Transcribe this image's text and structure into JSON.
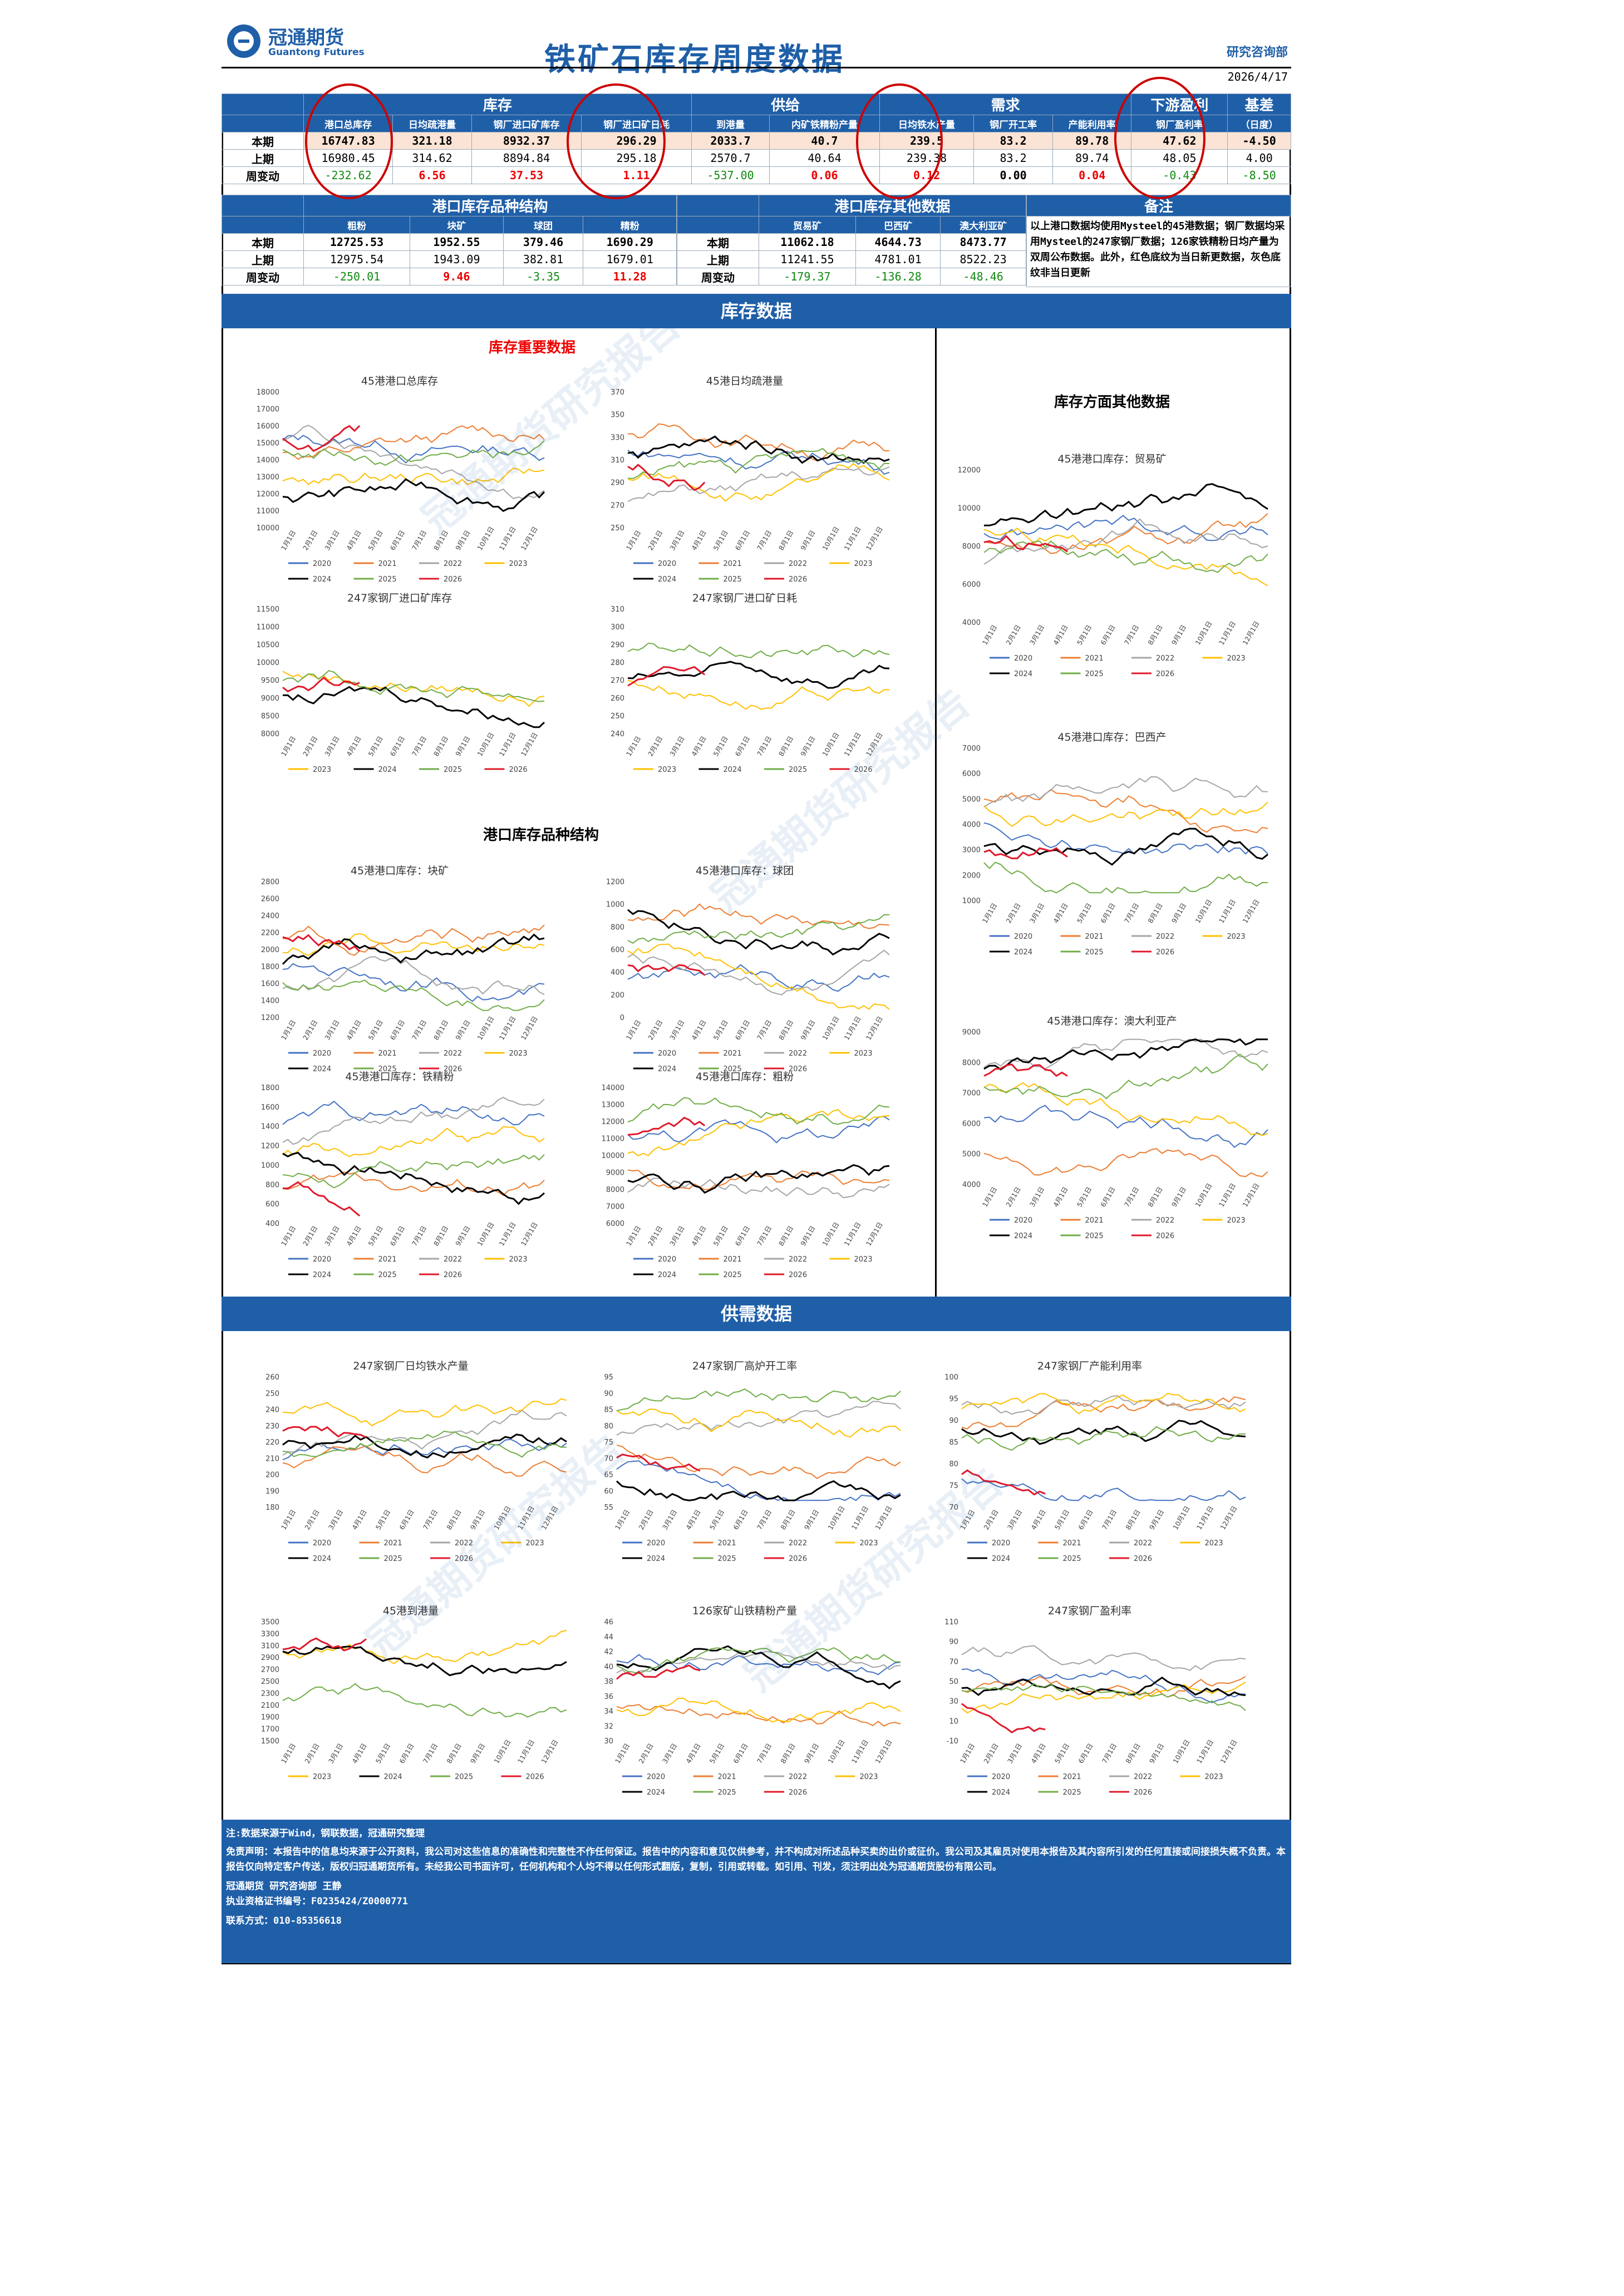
{
  "header": {
    "logo_cn": "冠通期货",
    "logo_en": "Guantong Futures",
    "title": "铁矿石库存周度数据",
    "dept": "研究咨询部",
    "date": "2026/4/17"
  },
  "table1": {
    "groups": [
      "库存",
      "供给",
      "需求",
      "下游盈利",
      "基差"
    ],
    "basis_sub": "（日度）",
    "cols": [
      "港口总库存",
      "日均疏港量",
      "钢厂进口矿库存",
      "钢厂进口矿日耗",
      "到港量",
      "内矿铁精粉产量",
      "日均铁水产量",
      "钢厂开工率",
      "产能利用率",
      "钢厂盈利率"
    ],
    "rows": [
      {
        "label": "本期",
        "vals": [
          "16747.83",
          "321.18",
          "8932.37",
          "296.29",
          "2033.7",
          "40.7",
          "239.5",
          "83.2",
          "89.78",
          "47.62",
          "-4.50"
        ]
      },
      {
        "label": "上期",
        "vals": [
          "16980.45",
          "314.62",
          "8894.84",
          "295.18",
          "2570.7",
          "40.64",
          "239.38",
          "83.2",
          "89.74",
          "48.05",
          "4.00"
        ]
      },
      {
        "label": "周变动",
        "vals": [
          "-232.62",
          "6.56",
          "37.53",
          "1.11",
          "-537.00",
          "0.06",
          "0.12",
          "0.00",
          "0.04",
          "-0.43",
          "-8.50"
        ]
      }
    ]
  },
  "table2": {
    "title": "港口库存品种结构",
    "cols": [
      "粗粉",
      "块矿",
      "球团",
      "精粉"
    ],
    "rows": [
      {
        "label": "本期",
        "vals": [
          "12725.53",
          "1952.55",
          "379.46",
          "1690.29"
        ]
      },
      {
        "label": "上期",
        "vals": [
          "12975.54",
          "1943.09",
          "382.81",
          "1679.01"
        ]
      },
      {
        "label": "周变动",
        "vals": [
          "-250.01",
          "9.46",
          "-3.35",
          "11.28"
        ]
      }
    ]
  },
  "table3": {
    "title": "港口库存其他数据",
    "cols": [
      "贸易矿",
      "巴西矿",
      "澳大利亚矿"
    ],
    "rows": [
      {
        "label": "本期",
        "vals": [
          "11062.18",
          "4644.73",
          "8473.77"
        ]
      },
      {
        "label": "上期",
        "vals": [
          "11241.55",
          "4781.01",
          "8522.23"
        ]
      },
      {
        "label": "周变动",
        "vals": [
          "-179.37",
          "-136.28",
          "-48.46"
        ]
      }
    ]
  },
  "remarks": {
    "title": "备注",
    "text": "以上港口数据均使用Mysteel的45港数据；钢厂数据均采用Mysteel的247家钢厂数据；126家铁精粉日均产量为双周公布数据。此外，红色底纹为当日新更数据，灰色底纹非当日更新"
  },
  "sections": {
    "inventory": "库存数据",
    "supply": "供需数据",
    "key_inventory": "库存重要数据",
    "port_structure": "港口库存品种结构",
    "other_inventory": "库存方面其他数据"
  },
  "months": [
    "1月1日",
    "2月1日",
    "3月1日",
    "4月1日",
    "5月1日",
    "6月1日",
    "7月1日",
    "8月1日",
    "9月1日",
    "10月1日",
    "11月1日",
    "12月1日"
  ],
  "colors": {
    "2020": "#4472c4",
    "2021": "#ed7d31",
    "2022": "#a5a5a5",
    "2023": "#ffc000",
    "2024": "#000000",
    "2025": "#70ad47",
    "2026": "#e0192b"
  },
  "charts": [
    {
      "id": "c1",
      "title": "45港港口总库存",
      "yticks": [
        "18000",
        "17000",
        "16000",
        "15000",
        "14000",
        "13000",
        "12000",
        "11000",
        "10000"
      ],
      "legend": [
        "2020",
        "2021",
        "2022",
        "2023",
        "2024",
        "2025",
        "2026"
      ]
    },
    {
      "id": "c2",
      "title": "45港日均疏港量",
      "yticks": [
        "370",
        "350",
        "330",
        "310",
        "290",
        "270",
        "250"
      ],
      "legend": [
        "2020",
        "2021",
        "2022",
        "2023",
        "2024",
        "2025",
        "2026"
      ]
    },
    {
      "id": "c3",
      "title": "247家钢厂进口矿库存",
      "yticks": [
        "11500",
        "11000",
        "10500",
        "10000",
        "9500",
        "9000",
        "8500",
        "8000"
      ],
      "legend": [
        "2023",
        "2024",
        "2025",
        "2026"
      ]
    },
    {
      "id": "c4",
      "title": "247家钢厂进口矿日耗",
      "yticks": [
        "310",
        "300",
        "290",
        "280",
        "270",
        "260",
        "250",
        "240"
      ],
      "legend": [
        "2023",
        "2024",
        "2025",
        "2026"
      ]
    },
    {
      "id": "c5",
      "title": "45港港口库存：块矿",
      "yticks": [
        "2800",
        "2600",
        "2400",
        "2200",
        "2000",
        "1800",
        "1600",
        "1400",
        "1200"
      ],
      "legend": [
        "2020",
        "2021",
        "2022",
        "2023",
        "2024",
        "2025",
        "2026"
      ]
    },
    {
      "id": "c6",
      "title": "45港港口库存：球团",
      "yticks": [
        "1200",
        "1000",
        "800",
        "600",
        "400",
        "200",
        "0"
      ],
      "legend": [
        "2020",
        "2021",
        "2022",
        "2023",
        "2024",
        "2025",
        "2026"
      ]
    },
    {
      "id": "c7",
      "title": "45港港口库存：铁精粉",
      "yticks": [
        "1800",
        "1600",
        "1400",
        "1200",
        "1000",
        "800",
        "600",
        "400"
      ],
      "legend": [
        "2020",
        "2021",
        "2022",
        "2023",
        "2024",
        "2025",
        "2026"
      ]
    },
    {
      "id": "c8",
      "title": "45港港口库存：粗粉",
      "yticks": [
        "14000",
        "13000",
        "12000",
        "11000",
        "10000",
        "9000",
        "8000",
        "7000",
        "6000"
      ],
      "legend": [
        "2020",
        "2021",
        "2022",
        "2023",
        "2024",
        "2025",
        "2026"
      ]
    },
    {
      "id": "c9",
      "title": "45港港口库存：贸易矿",
      "yticks": [
        "12000",
        "10000",
        "8000",
        "6000",
        "4000"
      ],
      "legend": [
        "2020",
        "2021",
        "2022",
        "2023",
        "2024",
        "2025",
        "2026"
      ]
    },
    {
      "id": "c10",
      "title": "45港港口库存：巴西产",
      "yticks": [
        "7000",
        "6000",
        "5000",
        "4000",
        "3000",
        "2000",
        "1000"
      ],
      "legend": [
        "2020",
        "2021",
        "2022",
        "2023",
        "2024",
        "2025",
        "2026"
      ]
    },
    {
      "id": "c11",
      "title": "45港港口库存：澳大利亚产",
      "yticks": [
        "9000",
        "8000",
        "7000",
        "6000",
        "5000",
        "4000"
      ],
      "legend": [
        "2020",
        "2021",
        "2022",
        "2023",
        "2024",
        "2025",
        "2026"
      ]
    },
    {
      "id": "c12",
      "title": "247家钢厂日均铁水产量",
      "yticks": [
        "260",
        "250",
        "240",
        "230",
        "220",
        "210",
        "200",
        "190",
        "180"
      ],
      "legend": [
        "2020",
        "2021",
        "2022",
        "2023",
        "2024",
        "2025",
        "2026"
      ]
    },
    {
      "id": "c13",
      "title": "247家钢厂高炉开工率",
      "yticks": [
        "95",
        "90",
        "85",
        "80",
        "75",
        "70",
        "65",
        "60",
        "55"
      ],
      "legend": [
        "2020",
        "2021",
        "2022",
        "2023",
        "2024",
        "2025",
        "2026"
      ]
    },
    {
      "id": "c14",
      "title": "247家钢厂产能利用率",
      "yticks": [
        "100",
        "95",
        "90",
        "85",
        "80",
        "75",
        "70"
      ],
      "legend": [
        "2020",
        "2021",
        "2022",
        "2023",
        "2024",
        "2025",
        "2026"
      ]
    },
    {
      "id": "c15",
      "title": "45港到港量",
      "yticks": [
        "3500",
        "3300",
        "3100",
        "2900",
        "2700",
        "2500",
        "2300",
        "2100",
        "1900",
        "1700",
        "1500"
      ],
      "legend": [
        "2023",
        "2024",
        "2025",
        "2026"
      ]
    },
    {
      "id": "c16",
      "title": "126家矿山铁精粉产量",
      "yticks": [
        "46",
        "44",
        "42",
        "40",
        "38",
        "36",
        "34",
        "32",
        "30"
      ],
      "legend": [
        "2020",
        "2021",
        "2022",
        "2023",
        "2024",
        "2025",
        "2026"
      ]
    },
    {
      "id": "c17",
      "title": "247家钢厂盈利率",
      "yticks": [
        "110",
        "90",
        "70",
        "50",
        "30",
        "10",
        "-10"
      ],
      "legend": [
        "2020",
        "2021",
        "2022",
        "2023",
        "2024",
        "2025",
        "2026"
      ]
    }
  ],
  "footer": {
    "source": "注:数据来源于Wind，钢联数据，冠通研究整理",
    "disclaimer": "免责声明：本报告中的信息均来源于公开资料，我公司对这些信息的准确性和完整性不作任何保证。报告中的内容和意见仅供参考，并不构成对所述品种买卖的出价或征价。我公司及其雇员对使用本报告及其内容所引发的任何直接或间接损失概不负责。本报告仅向特定客户传送，版权归冠通期货所有。未经我公司书面许可，任何机构和个人均不得以任何形式翻版，复制，引用或转载。如引用、刊发，须注明出处为冠通期货股份有限公司。",
    "author": "冠通期货 研究咨询部 王静",
    "license": "执业资格证书编号：F0235424/Z0000771",
    "contact": "联系方式：010-85356618"
  },
  "watermark": "冠通期货研究报告"
}
